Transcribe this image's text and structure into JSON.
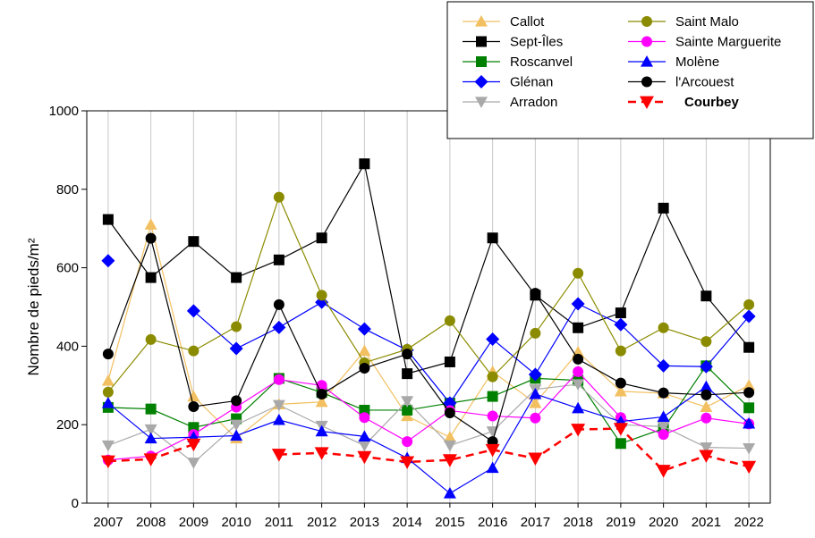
{
  "chart_data": {
    "type": "line",
    "ylabel": "Nombre de pieds/m²",
    "xlabel": "",
    "ylim": [
      0,
      1000
    ],
    "yticks": [
      0,
      200,
      400,
      600,
      800,
      1000
    ],
    "categories": [
      "2007",
      "2008",
      "2009",
      "2010",
      "2011",
      "2012",
      "2013",
      "2014",
      "2015",
      "2016",
      "2017",
      "2018",
      "2019",
      "2020",
      "2021",
      "2022"
    ],
    "grid": "vertical lines at each year",
    "legend_placement": "top-right",
    "series": [
      {
        "name": "Callot",
        "color": "#F2C060",
        "marker": "triangle-up",
        "line": "solid",
        "values": [
          312,
          710,
          272,
          165,
          252,
          258,
          388,
          222,
          168,
          335,
          255,
          385,
          285,
          280,
          245,
          300
        ]
      },
      {
        "name": "Sept-Îles",
        "color": "#000000",
        "marker": "square",
        "line": "solid",
        "values": [
          723,
          575,
          667,
          575,
          620,
          676,
          865,
          330,
          360,
          676,
          530,
          447,
          485,
          752,
          528,
          397
        ]
      },
      {
        "name": "Roscanvel",
        "color": "#008000",
        "marker": "square",
        "line": "solid",
        "values": [
          244,
          240,
          193,
          215,
          318,
          282,
          237,
          237,
          255,
          272,
          318,
          313,
          152,
          190,
          350,
          243
        ]
      },
      {
        "name": "Glénan",
        "color": "#0000FF",
        "marker": "diamond",
        "line": "solid",
        "values": [
          618,
          null,
          490,
          394,
          448,
          512,
          444,
          390,
          255,
          418,
          328,
          508,
          455,
          350,
          348,
          476
        ]
      },
      {
        "name": "Arradon",
        "color": "#A9A9A9",
        "marker": "triangle-down",
        "line": "solid",
        "values": [
          147,
          188,
          103,
          200,
          250,
          197,
          147,
          260,
          147,
          183,
          290,
          303,
          200,
          195,
          142,
          140
        ]
      },
      {
        "name": "Saint Malo",
        "color": "#8B8B00",
        "marker": "circle",
        "line": "solid",
        "values": [
          283,
          417,
          388,
          450,
          780,
          530,
          358,
          392,
          465,
          322,
          433,
          586,
          388,
          447,
          412,
          506
        ]
      },
      {
        "name": "Sainte Marguerite",
        "color": "#FF00FF",
        "marker": "circle",
        "line": "solid",
        "values": [
          110,
          120,
          175,
          245,
          315,
          300,
          218,
          157,
          236,
          222,
          217,
          335,
          218,
          175,
          217,
          202
        ]
      },
      {
        "name": "Molène",
        "color": "#0000FF",
        "marker": "triangle-up",
        "line": "solid",
        "values": [
          255,
          165,
          168,
          172,
          212,
          183,
          170,
          115,
          25,
          90,
          278,
          242,
          208,
          220,
          297,
          203
        ]
      },
      {
        "name": "l'Arcouest",
        "color": "#000000",
        "marker": "circle",
        "line": "solid",
        "values": [
          380,
          675,
          246,
          261,
          506,
          278,
          344,
          380,
          230,
          157,
          535,
          367,
          306,
          281,
          276,
          282
        ]
      },
      {
        "name": "Courbey",
        "color": "#FF0000",
        "marker": "triangle-down",
        "line": "dashed",
        "bold_label": true,
        "values": [
          107,
          112,
          150,
          null,
          124,
          128,
          118,
          105,
          110,
          136,
          114,
          188,
          190,
          83,
          121,
          93
        ]
      }
    ]
  }
}
